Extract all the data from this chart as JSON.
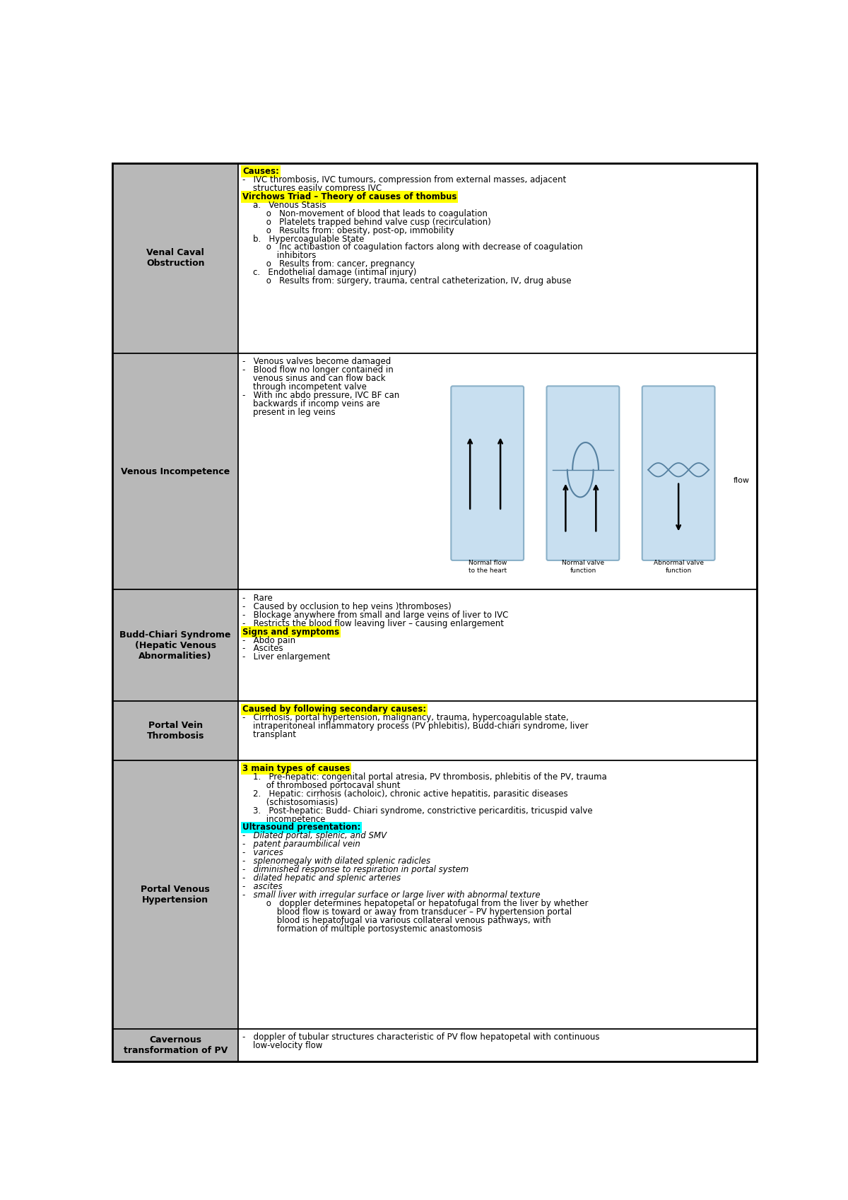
{
  "bg_color": "#ffffff",
  "header_col_color": "#b8b8b8",
  "border_color": "#000000",
  "rows": [
    {
      "row_label": "Venal Caval\nObstruction",
      "content": [
        {
          "text": "Causes:",
          "highlight": "yellow",
          "bold": true,
          "underline": true
        },
        {
          "text": "-   IVC thrombosis, IVC tumours, compression from external masses, adjacent\n    structures easily compress IVC"
        },
        {
          "text": "Virchows Triad – Theory of causes of thombus",
          "highlight": "yellow",
          "bold": true,
          "underline": true
        },
        {
          "text": "    a.   Venous Stasis"
        },
        {
          "text": "         o   Non-movement of blood that leads to coagulation"
        },
        {
          "text": "         o   Platelets trapped behind valve cusp (recirculation)"
        },
        {
          "text": "         o   Results from: obesity, post-op, immobility"
        },
        {
          "text": "    b.   Hypercoagulable State"
        },
        {
          "text": "         o   Inc actibastion of coagulation factors along with decrease of coagulation\n             inhibitors"
        },
        {
          "text": "         o   Results from: cancer, pregnancy"
        },
        {
          "text": "    c.   Endothelial damage (intimal injury)"
        },
        {
          "text": "         o   Results from: surgery, trauma, central catheterization, IV, drug abuse"
        }
      ]
    },
    {
      "row_label": "Venous Incompetence",
      "has_image": true,
      "content": [
        {
          "text": "-   Venous valves become damaged"
        },
        {
          "text": "-   Blood flow no longer contained in\n    venous sinus and can flow back\n    through incompetent valve"
        },
        {
          "text": "-   With inc abdo pressure, IVC BF can\n    backwards if incomp veins are\n    present in leg veins"
        }
      ]
    },
    {
      "row_label": "Budd-Chiari Syndrome\n(Hepatic Venous\nAbnormalities)",
      "content": [
        {
          "text": "-   Rare"
        },
        {
          "text": "-   Caused by occlusion to hep veins )thromboses)"
        },
        {
          "text": "-   Blockage anywhere from small and large veins of liver to IVC"
        },
        {
          "text": "-   Restricts the blood flow leaving liver – causing enlargement"
        },
        {
          "text": "Signs and symptoms",
          "highlight": "yellow",
          "bold": true,
          "underline": true
        },
        {
          "text": "-   Abdo pain"
        },
        {
          "text": "-   Ascites"
        },
        {
          "text": "-   Liver enlargement"
        }
      ]
    },
    {
      "row_label": "Portal Vein\nThrombosis",
      "content": [
        {
          "text": "Caused by following secondary causes:",
          "highlight": "yellow",
          "bold": true,
          "underline": true
        },
        {
          "text": "-   Cirrhosis, portal hypertension, malignancy, trauma, hypercoagulable state,\n    intraperitoneal inflammatory process (PV phlebitis), Budd-chiari syndrome, liver\n    transplant"
        }
      ]
    },
    {
      "row_label": "Portal Venous\nHypertension",
      "content": [
        {
          "text": "3 main types of causes",
          "highlight": "yellow",
          "bold": true,
          "underline": true
        },
        {
          "text": "    1.   Pre-hepatic: congenital portal atresia, PV thrombosis, phlebitis of the PV, trauma\n         of thrombosed portocaval shunt"
        },
        {
          "text": "    2.   Hepatic: cirrhosis (acholoic), chronic active hepatitis, parasitic diseases\n         (schistosomiasis)"
        },
        {
          "text": "    3.   Post-hepatic: Budd- Chiari syndrome, constrictive pericarditis, tricuspid valve\n         incompetence"
        },
        {
          "text": "Ultrasound presentation:",
          "highlight": "cyan",
          "bold": true,
          "underline": true
        },
        {
          "text": "-   Dilated portal, splenic, and SMV",
          "italic": true
        },
        {
          "text": "-   patent paraumbilical vein",
          "italic": true
        },
        {
          "text": "-   varices",
          "italic": true
        },
        {
          "text": "-   splenomegaly with dilated splenic radicles",
          "italic": true
        },
        {
          "text": "-   diminished response to respiration in portal system",
          "italic": true
        },
        {
          "text": "-   dilated hepatic and splenic arteries",
          "italic": true
        },
        {
          "text": "-   ascites",
          "italic": true
        },
        {
          "text": "-   small liver with irregular surface or large liver with abnormal texture",
          "italic": true
        },
        {
          "text": "         o   doppler determines hepatopetal or hepatofugal from the liver by whether\n             blood flow is toward or away from transducer – PV hypertension portal\n             blood is hepatoƒugal via various collateral venous pathways, with\n             formation of multiple portosystemic anastomosis"
        }
      ]
    },
    {
      "row_label": "Cavernous\ntransformation of PV",
      "content": [
        {
          "text": "-   doppler of tubular structures characteristic of PV flow hepatopetal with continuous\n    low-velocity flow"
        }
      ]
    }
  ]
}
